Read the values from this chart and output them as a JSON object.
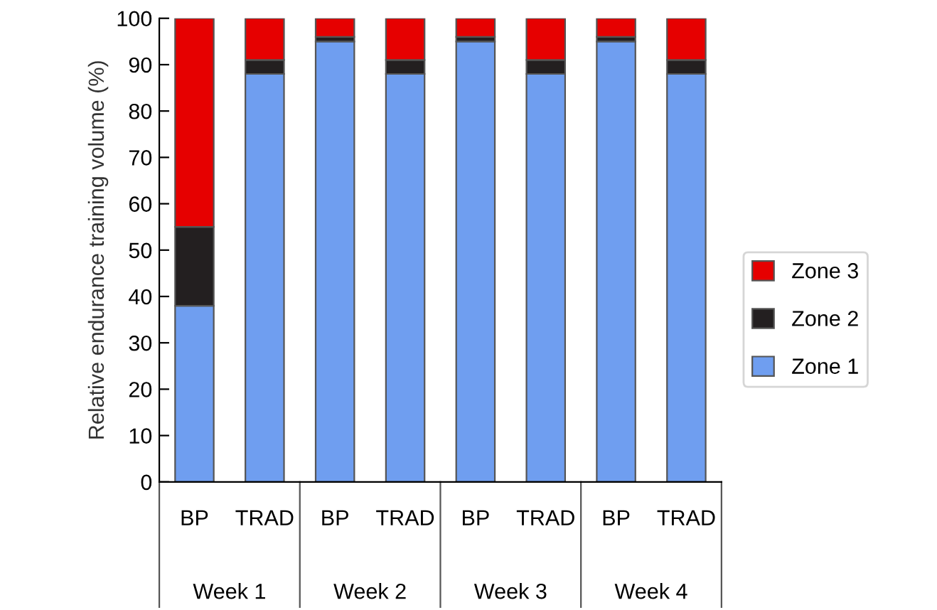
{
  "chart_data": {
    "type": "bar",
    "stacked": true,
    "ylabel": "Relative endurance training volume (%)",
    "categories": [
      "BP",
      "TRAD",
      "BP",
      "TRAD",
      "BP",
      "TRAD",
      "BP",
      "TRAD"
    ],
    "series": [
      {
        "name": "Zone 1",
        "color": "#6f9ef0",
        "values": [
          38,
          88,
          95,
          88,
          95,
          88,
          95,
          88
        ]
      },
      {
        "name": "Zone 2",
        "color": "#231f20",
        "values": [
          17,
          3,
          1,
          3,
          1,
          3,
          1,
          3
        ]
      },
      {
        "name": "Zone 3",
        "color": "#e60000",
        "values": [
          45,
          9,
          4,
          9,
          4,
          9,
          4,
          9
        ]
      }
    ],
    "ylim": [
      0,
      100
    ],
    "yticks": [
      0,
      10,
      20,
      30,
      40,
      50,
      60,
      70,
      80,
      90,
      100
    ],
    "annotations": [
      "Week 1",
      "Week 2",
      "Week 3",
      "Week 4"
    ],
    "grid": false,
    "legend": "right"
  }
}
